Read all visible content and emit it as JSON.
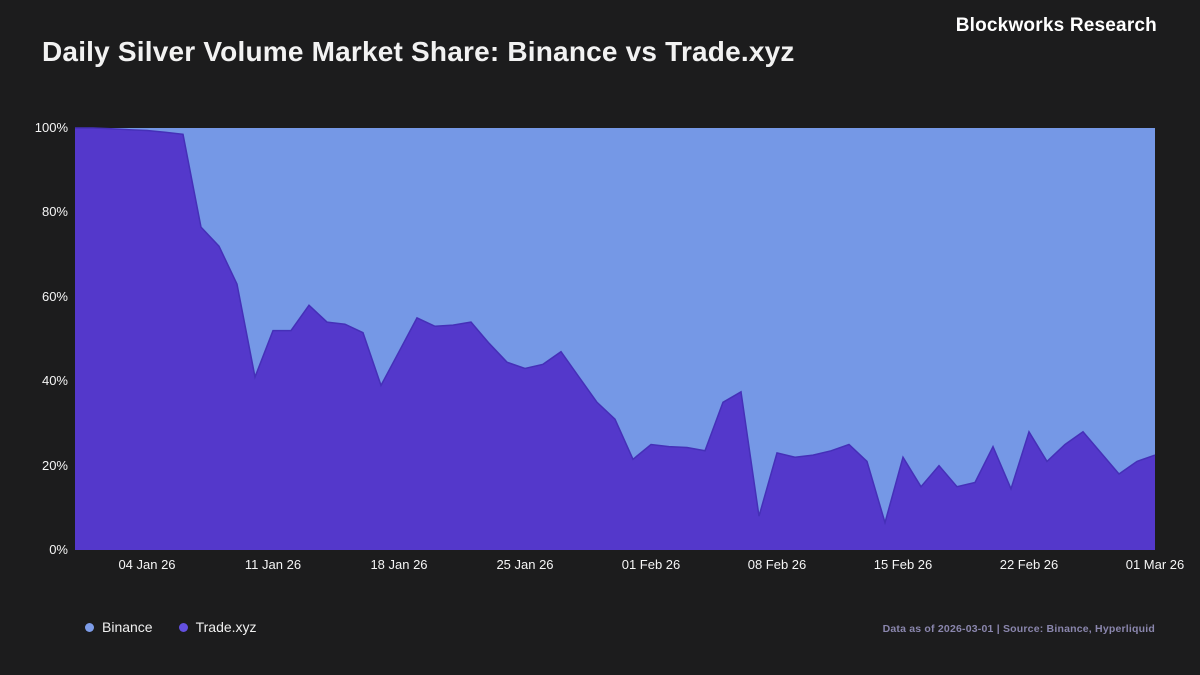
{
  "header": {
    "title": "Daily Silver Volume Market Share: Binance vs Trade.xyz",
    "brand": "Blockworks Research"
  },
  "footer": {
    "source_note": "Data as of 2026-03-01 | Source: Binance, Hyperliquid"
  },
  "colors": {
    "background": "#1c1c1d",
    "binance_area": "#7598e6",
    "tradexyz_area": "#5438cb",
    "tradexyz_stroke": "#4530b8",
    "binance_dot": "#7d9ce8",
    "tradexyz_dot": "#6350e0",
    "axis_text": "#f5f5f5",
    "muted_text": "#8a86ad"
  },
  "chart_data": {
    "type": "area",
    "stacked": true,
    "units": "percent_share",
    "title": "Daily Silver Volume Market Share: Binance vs Trade.xyz",
    "x_start_date": "2025-12-31",
    "x_end_date": "2026-03-01",
    "x_tick_labels": [
      "04 Jan 26",
      "11 Jan 26",
      "18 Jan 26",
      "25 Jan 26",
      "01 Feb 26",
      "08 Feb 26",
      "15 Feb 26",
      "22 Feb 26",
      "01 Mar 26"
    ],
    "x_tick_day_index": [
      4,
      11,
      18,
      25,
      32,
      39,
      46,
      53,
      60
    ],
    "y_tick_labels": [
      "0%",
      "20%",
      "40%",
      "60%",
      "80%",
      "100%"
    ],
    "y_tick_values": [
      0,
      20,
      40,
      60,
      80,
      100
    ],
    "ylim": [
      0,
      100
    ],
    "grid": false,
    "legend_position": "bottom-left",
    "series": [
      {
        "name": "Binance",
        "color": "#7598e6",
        "values": [
          0,
          0,
          0.2,
          0.4,
          0.6,
          1,
          1.5,
          23.5,
          28,
          37,
          59,
          48,
          48,
          42,
          46,
          46.5,
          48.5,
          61,
          53,
          45,
          47,
          46.7,
          46,
          51,
          55.5,
          57,
          56,
          53,
          59,
          65,
          69,
          78.5,
          75,
          75.5,
          75.7,
          76.5,
          65,
          62.5,
          92,
          77,
          78,
          77.5,
          76.5,
          75,
          79,
          93.5,
          78,
          85,
          80,
          85,
          84,
          75.5,
          85.5,
          72,
          79,
          75,
          72,
          77,
          82,
          79,
          77.5
        ]
      },
      {
        "name": "Trade.xyz",
        "color": "#5438cb",
        "values": [
          100,
          100,
          99.8,
          99.6,
          99.4,
          99,
          98.5,
          76.5,
          72,
          63,
          41,
          52,
          52,
          58,
          54,
          53.5,
          51.5,
          39,
          47,
          55,
          53,
          53.3,
          54,
          49,
          44.5,
          43,
          44,
          47,
          41,
          35,
          31,
          21.5,
          25,
          24.5,
          24.3,
          23.5,
          35,
          37.5,
          8,
          23,
          22,
          22.5,
          23.5,
          25,
          21,
          6.5,
          22,
          15,
          20,
          15,
          16,
          24.5,
          14.5,
          28,
          21,
          25,
          28,
          23,
          18,
          21,
          22.5
        ]
      }
    ]
  }
}
